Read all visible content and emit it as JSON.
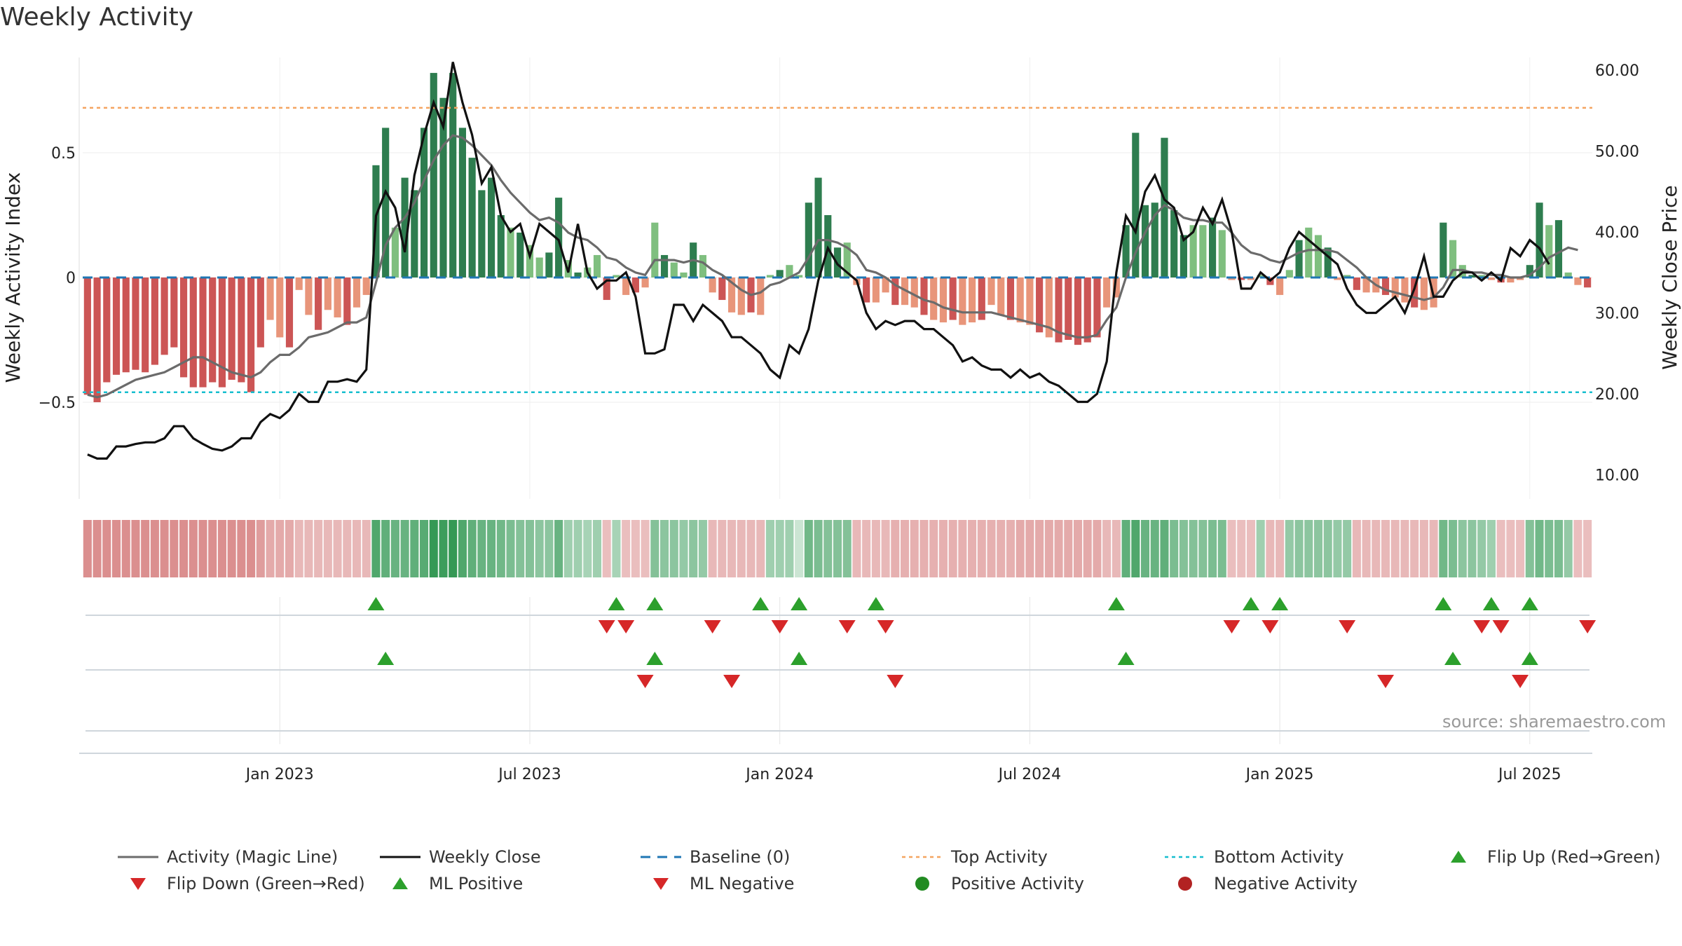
{
  "page": {
    "title": "Weekly Activity",
    "source": "source: sharemaestro.com"
  },
  "chart_data": {
    "type": "bar",
    "title": "Weekly Activity",
    "ylabel_left": "Weekly Activity Index",
    "ylabel_right": "Weekly Close Price",
    "yticks_left": [
      "0.5",
      "0",
      "−0.5"
    ],
    "yticks_right": [
      "60.00",
      "50.00",
      "40.00",
      "30.00",
      "20.00",
      "10.00"
    ],
    "xticks": [
      "Jan 2023",
      "Jul 2023",
      "Jan 2024",
      "Jul 2024",
      "Jan 2025",
      "Jul 2025"
    ],
    "ylim_left": [
      -0.9,
      0.9
    ],
    "ylim_right": [
      5,
      62
    ],
    "top_activity": 0.68,
    "bottom_activity": -0.46,
    "grid": true,
    "colors": {
      "pos_strong": "#2e7d4f",
      "pos_light": "#7fbf7f",
      "neg_strong": "#cc5555",
      "neg_light": "#e8957a",
      "magic": "#6b6b6b",
      "close": "#111111",
      "baseline": "#1f77b4",
      "top": "#f4a460",
      "bottom": "#17becf",
      "up": "#2ca02c",
      "down": "#d62728"
    },
    "activity": [
      -0.47,
      -0.5,
      -0.42,
      -0.39,
      -0.38,
      -0.37,
      -0.38,
      -0.35,
      -0.31,
      -0.28,
      -0.4,
      -0.44,
      -0.44,
      -0.42,
      -0.44,
      -0.41,
      -0.42,
      -0.46,
      -0.28,
      -0.17,
      -0.24,
      -0.28,
      -0.05,
      -0.15,
      -0.21,
      -0.13,
      -0.16,
      -0.19,
      -0.12,
      -0.07,
      0.45,
      0.6,
      0.2,
      0.4,
      0.35,
      0.6,
      0.82,
      0.72,
      0.82,
      0.6,
      0.48,
      0.35,
      0.4,
      0.25,
      0.2,
      0.18,
      0.13,
      0.08,
      0.1,
      0.32,
      0.07,
      0.02,
      0.04,
      0.09,
      -0.09,
      0.01,
      -0.07,
      -0.06,
      -0.04,
      0.22,
      0.09,
      0.06,
      0.02,
      0.14,
      0.09,
      -0.06,
      -0.09,
      -0.14,
      -0.15,
      -0.14,
      -0.15,
      0.01,
      0.03,
      0.05,
      0.01,
      0.3,
      0.4,
      0.25,
      0.12,
      0.14,
      -0.03,
      -0.1,
      -0.1,
      -0.06,
      -0.11,
      -0.11,
      -0.12,
      -0.15,
      -0.17,
      -0.18,
      -0.17,
      -0.19,
      -0.18,
      -0.17,
      -0.11,
      -0.15,
      -0.17,
      -0.18,
      -0.19,
      -0.22,
      -0.24,
      -0.26,
      -0.25,
      -0.27,
      -0.26,
      -0.24,
      -0.12,
      -0.08,
      0.21,
      0.58,
      0.29,
      0.3,
      0.56,
      0.27,
      0.17,
      0.21,
      0.21,
      0.24,
      0.19,
      -0.01,
      -0.01,
      -0.01,
      0.01,
      -0.03,
      -0.07,
      0.03,
      0.15,
      0.2,
      0.17,
      0.12,
      -0.01,
      0.01,
      -0.05,
      -0.06,
      -0.06,
      -0.07,
      -0.08,
      -0.1,
      -0.12,
      -0.13,
      -0.12,
      0.22,
      0.15,
      0.05,
      0.01,
      0.01,
      -0.01,
      -0.02,
      -0.02,
      -0.01,
      0.05,
      0.3,
      0.21,
      0.23,
      0.02,
      -0.03,
      -0.04
    ],
    "magic_line": [
      -0.47,
      -0.48,
      -0.47,
      -0.45,
      -0.43,
      -0.41,
      -0.4,
      -0.39,
      -0.38,
      -0.36,
      -0.34,
      -0.32,
      -0.32,
      -0.34,
      -0.36,
      -0.38,
      -0.39,
      -0.4,
      -0.38,
      -0.34,
      -0.31,
      -0.31,
      -0.28,
      -0.24,
      -0.23,
      -0.22,
      -0.2,
      -0.18,
      -0.18,
      -0.16,
      -0.02,
      0.13,
      0.2,
      0.24,
      0.3,
      0.39,
      0.47,
      0.53,
      0.57,
      0.56,
      0.53,
      0.49,
      0.45,
      0.39,
      0.34,
      0.3,
      0.26,
      0.23,
      0.24,
      0.22,
      0.18,
      0.16,
      0.15,
      0.12,
      0.08,
      0.07,
      0.04,
      0.02,
      0.01,
      0.07,
      0.07,
      0.07,
      0.06,
      0.07,
      0.06,
      0.03,
      0.01,
      -0.02,
      -0.05,
      -0.07,
      -0.06,
      -0.03,
      -0.02,
      0.0,
      0.02,
      0.08,
      0.15,
      0.15,
      0.14,
      0.12,
      0.09,
      0.03,
      0.02,
      0.0,
      -0.03,
      -0.05,
      -0.07,
      -0.09,
      -0.1,
      -0.12,
      -0.13,
      -0.14,
      -0.14,
      -0.14,
      -0.14,
      -0.15,
      -0.16,
      -0.17,
      -0.18,
      -0.19,
      -0.2,
      -0.22,
      -0.23,
      -0.24,
      -0.24,
      -0.23,
      -0.17,
      -0.12,
      0.0,
      0.1,
      0.18,
      0.25,
      0.29,
      0.27,
      0.24,
      0.23,
      0.23,
      0.22,
      0.22,
      0.18,
      0.13,
      0.1,
      0.09,
      0.07,
      0.06,
      0.08,
      0.1,
      0.11,
      0.11,
      0.11,
      0.1,
      0.07,
      0.04,
      0.0,
      -0.03,
      -0.05,
      -0.06,
      -0.07,
      -0.08,
      -0.09,
      -0.08,
      -0.04,
      0.03,
      0.03,
      0.02,
      0.02,
      0.01,
      0.01,
      0.0,
      0.0,
      0.01,
      0.04,
      0.08,
      0.1,
      0.12,
      0.11
    ],
    "weekly_close": [
      12.5,
      12,
      12,
      13.5,
      13.5,
      13.8,
      14,
      14,
      14.5,
      16,
      16,
      14.5,
      13.8,
      13.2,
      13,
      13.5,
      14.5,
      14.5,
      16.5,
      17.5,
      17,
      18,
      20,
      19,
      19,
      21.5,
      21.5,
      21.8,
      21.5,
      23,
      42,
      45,
      43,
      37.5,
      47,
      52,
      56,
      53,
      61,
      56,
      52,
      46,
      48,
      42,
      40,
      41,
      37,
      41,
      40,
      39,
      35,
      41,
      35,
      33,
      34,
      34,
      35,
      32,
      25,
      25,
      25.5,
      31,
      31,
      29,
      31,
      30,
      29,
      27,
      27,
      26,
      25,
      23,
      22,
      26,
      25,
      28,
      34,
      38,
      36,
      35,
      34,
      30,
      28,
      29,
      28.5,
      29,
      29,
      28,
      28,
      27,
      26,
      24,
      24.5,
      23.5,
      23,
      23,
      22,
      23,
      22,
      22.5,
      21.5,
      21,
      20,
      19,
      19,
      20,
      24,
      35,
      42,
      40,
      45,
      47,
      44,
      43,
      39,
      40,
      43,
      41,
      44,
      40,
      33,
      33,
      35,
      34,
      35,
      38,
      40,
      39,
      38,
      37,
      36,
      33,
      31,
      30,
      30,
      31,
      32,
      30,
      33,
      37,
      32,
      32,
      34,
      35,
      35,
      34,
      35,
      34,
      38,
      37,
      39,
      38,
      36
    ],
    "flip_up": [
      30,
      55,
      59,
      70,
      74,
      82,
      107,
      121,
      124,
      141,
      146,
      150
    ],
    "flip_down": [
      54,
      56,
      65,
      72,
      79,
      83,
      119,
      123,
      131,
      145,
      147,
      156
    ],
    "ml_positive": [
      31,
      59,
      74,
      108,
      142,
      150
    ],
    "ml_negative": [
      58,
      67,
      84,
      135,
      149
    ],
    "heat_strength": [
      -0.55,
      -0.55,
      -0.55,
      -0.55,
      -0.55,
      -0.55,
      -0.55,
      -0.55,
      -0.55,
      -0.55,
      -0.55,
      -0.55,
      -0.55,
      -0.55,
      -0.55,
      -0.55,
      -0.55,
      -0.55,
      -0.45,
      -0.35,
      -0.35,
      -0.35,
      -0.25,
      -0.25,
      -0.25,
      -0.25,
      -0.25,
      -0.25,
      -0.25,
      -0.25,
      0.7,
      0.6,
      0.55,
      0.55,
      0.6,
      0.65,
      0.85,
      0.8,
      0.85,
      0.7,
      0.6,
      0.55,
      0.55,
      0.5,
      0.45,
      0.4,
      0.4,
      0.35,
      0.35,
      0.55,
      0.25,
      0.25,
      0.2,
      0.25,
      -0.2,
      0.2,
      -0.2,
      -0.2,
      -0.2,
      0.4,
      0.35,
      0.35,
      0.3,
      0.35,
      0.3,
      -0.25,
      -0.25,
      -0.25,
      -0.25,
      -0.25,
      -0.25,
      0.25,
      0.25,
      0.25,
      0.0,
      0.5,
      0.45,
      0.4,
      0.4,
      0.4,
      -0.25,
      -0.25,
      -0.25,
      -0.25,
      -0.3,
      -0.3,
      -0.3,
      -0.3,
      -0.3,
      -0.3,
      -0.3,
      -0.3,
      -0.3,
      -0.3,
      -0.3,
      -0.3,
      -0.3,
      -0.35,
      -0.35,
      -0.35,
      -0.35,
      -0.35,
      -0.35,
      -0.35,
      -0.35,
      -0.35,
      -0.25,
      -0.25,
      0.6,
      0.7,
      0.55,
      0.55,
      0.6,
      0.45,
      0.4,
      0.4,
      0.4,
      0.45,
      0.45,
      -0.2,
      -0.2,
      -0.2,
      0.25,
      -0.25,
      -0.25,
      0.3,
      0.35,
      0.35,
      0.35,
      0.35,
      0.3,
      0.3,
      -0.25,
      -0.25,
      -0.25,
      -0.25,
      -0.25,
      -0.25,
      -0.25,
      -0.25,
      -0.25,
      0.5,
      0.45,
      0.35,
      0.35,
      0.3,
      0.25,
      -0.2,
      -0.2,
      -0.2,
      0.4,
      0.5,
      0.45,
      0.45,
      0.3,
      -0.2,
      -0.2
    ]
  },
  "legend": [
    {
      "label": "Activity (Magic Line)",
      "symbol": "line-gray"
    },
    {
      "label": "Weekly Close",
      "symbol": "line-black"
    },
    {
      "label": "Baseline (0)",
      "symbol": "dash-blue"
    },
    {
      "label": "Top Activity",
      "symbol": "dot-orange"
    },
    {
      "label": "Bottom Activity",
      "symbol": "dot-cyan"
    },
    {
      "label": "Flip Up (Red→Green)",
      "symbol": "tri-up-green"
    },
    {
      "label": "Flip Down (Green→Red)",
      "symbol": "tri-down-red"
    },
    {
      "label": "ML Positive",
      "symbol": "tri-up-green"
    },
    {
      "label": "ML Negative",
      "symbol": "tri-down-red"
    },
    {
      "label": "Positive Activity",
      "symbol": "circle-green"
    },
    {
      "label": "Negative Activity",
      "symbol": "circle-red"
    }
  ]
}
